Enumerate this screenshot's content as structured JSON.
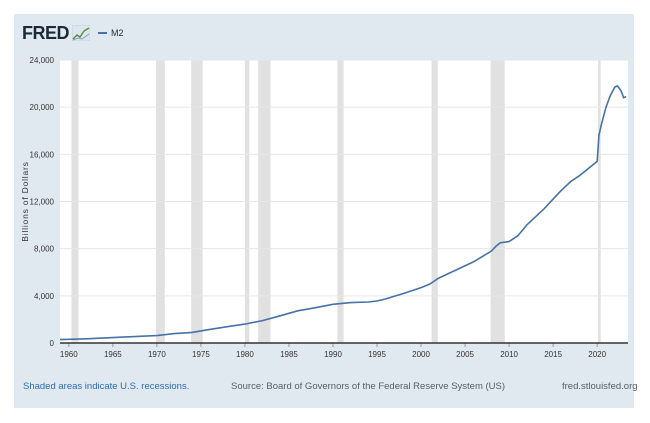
{
  "header": {
    "logo": "FRED",
    "legend_label": "M2"
  },
  "footer": {
    "recession_note": "Shaded areas indicate U.S. recessions.",
    "source": "Source: Board of Governors of the Federal Reserve System (US)",
    "site": "fred.stlouisfed.org"
  },
  "colors": {
    "series": "#4572a7",
    "recession": "#e1e1e1",
    "frame": "#e1e9f0",
    "plot_bg": "#ffffff"
  },
  "chart_data": {
    "type": "line",
    "title": "",
    "xlabel": "",
    "ylabel": "Billions of Dollars",
    "xlim": [
      1959.0,
      2023.5
    ],
    "ylim": [
      0,
      24000
    ],
    "grid": true,
    "legend_position": "top-left",
    "x_ticks": [
      "1960",
      "1965",
      "1970",
      "1975",
      "1980",
      "1985",
      "1990",
      "1995",
      "2000",
      "2005",
      "2010",
      "2015",
      "2020"
    ],
    "y_ticks": [
      "0",
      "4,000",
      "8,000",
      "12,000",
      "16,000",
      "20,000",
      "24,000"
    ],
    "recessions": [
      [
        1960.3,
        1961.1
      ],
      [
        1969.9,
        1970.9
      ],
      [
        1973.9,
        1975.2
      ],
      [
        1980.0,
        1980.5
      ],
      [
        1981.5,
        1982.9
      ],
      [
        1990.5,
        1991.2
      ],
      [
        2001.2,
        2001.9
      ],
      [
        2007.9,
        2009.5
      ],
      [
        2020.1,
        2020.4
      ]
    ],
    "series": [
      {
        "name": "M2",
        "x": [
          1959,
          1960,
          1962,
          1965,
          1968,
          1970,
          1972,
          1974,
          1976,
          1978,
          1980,
          1982,
          1984,
          1986,
          1988,
          1990,
          1992,
          1994,
          1995,
          1996,
          1998,
          2000,
          2001,
          2002,
          2004,
          2006,
          2008,
          2008.5,
          2009,
          2010,
          2011,
          2012,
          2013,
          2014,
          2015,
          2016,
          2017,
          2018,
          2019,
          2020.0,
          2020.2,
          2020.5,
          2021,
          2021.5,
          2022,
          2022.3,
          2022.7,
          2023,
          2023.3
        ],
        "y": [
          290,
          310,
          360,
          460,
          570,
          630,
          800,
          900,
          1150,
          1380,
          1600,
          1900,
          2310,
          2730,
          2990,
          3280,
          3430,
          3480,
          3560,
          3740,
          4200,
          4700,
          5000,
          5500,
          6200,
          6900,
          7800,
          8200,
          8500,
          8600,
          9100,
          10000,
          10700,
          11400,
          12200,
          13000,
          13700,
          14200,
          14800,
          15400,
          17600,
          18600,
          20000,
          21000,
          21700,
          21800,
          21400,
          20800,
          20900
        ]
      }
    ]
  }
}
